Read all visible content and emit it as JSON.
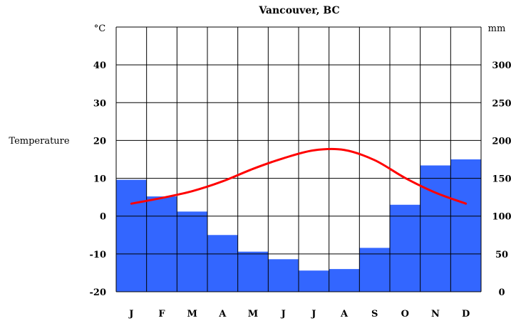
{
  "chart_data": {
    "type": "bar+line",
    "title": "Vancouver, BC",
    "categories": [
      "J",
      "F",
      "M",
      "A",
      "M",
      "J",
      "J",
      "A",
      "S",
      "O",
      "N",
      "D"
    ],
    "left_axis": {
      "label": "Temperature",
      "unit": "°C",
      "range": [
        -20,
        50
      ],
      "ticks": [
        "-20",
        "-10",
        "0",
        "10",
        "20",
        "30",
        "40"
      ]
    },
    "right_axis": {
      "unit": "mm",
      "range": [
        0,
        350
      ],
      "ticks": [
        "0",
        "50",
        "100",
        "150",
        "200",
        "250",
        "300"
      ]
    },
    "series": [
      {
        "kind": "bar",
        "axis": "right",
        "color": "#3366ff",
        "values": [
          148,
          126,
          106,
          75,
          53,
          43,
          28,
          30,
          58,
          115,
          167,
          175
        ]
      },
      {
        "kind": "line",
        "axis": "left",
        "color": "#ff0000",
        "values": [
          3.3,
          4.8,
          6.6,
          9.2,
          12.5,
          15.3,
          17.4,
          17.5,
          14.8,
          10.1,
          6.2,
          3.3
        ]
      }
    ],
    "grid": true
  }
}
